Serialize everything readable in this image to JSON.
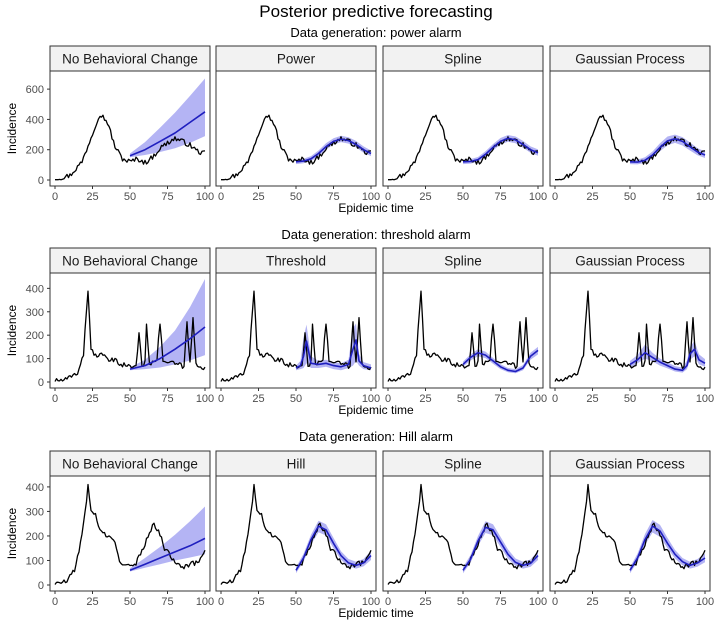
{
  "title": "Posterior predictive forecasting",
  "colors": {
    "observed": "#000000",
    "forecast_line": "#1f1fbf",
    "forecast_band": "#9b9bf0",
    "strip_fill": "#f2f2f2",
    "panel_border": "#333333"
  },
  "chart_data": [
    {
      "type": "line",
      "row_title": "Data generation: power alarm",
      "xlabel": "Epidemic time",
      "ylabel": "Incidence",
      "xlim": [
        0,
        100
      ],
      "ylim": [
        0,
        680
      ],
      "x_ticks": [
        0,
        25,
        50,
        75,
        100
      ],
      "y_ticks": [
        0,
        200,
        400,
        600
      ],
      "observed_peaks": [
        [
          0,
          5
        ],
        [
          10,
          30
        ],
        [
          18,
          120
        ],
        [
          24,
          280
        ],
        [
          29,
          420
        ],
        [
          31,
          430
        ],
        [
          35,
          380
        ],
        [
          40,
          220
        ],
        [
          45,
          140
        ],
        [
          50,
          120
        ],
        [
          55,
          140
        ],
        [
          60,
          115
        ],
        [
          65,
          150
        ],
        [
          70,
          210
        ],
        [
          75,
          245
        ],
        [
          80,
          275
        ],
        [
          85,
          255
        ],
        [
          90,
          230
        ],
        [
          95,
          190
        ],
        [
          100,
          175
        ]
      ],
      "panels": [
        {
          "label": "No Behavioral Change",
          "forecast_x": [
            50,
            60,
            70,
            80,
            90,
            100
          ],
          "forecast_mean": [
            160,
            200,
            255,
            310,
            380,
            450
          ],
          "forecast_lower": [
            150,
            165,
            185,
            210,
            245,
            290
          ],
          "forecast_upper": [
            175,
            250,
            345,
            445,
            555,
            670
          ]
        },
        {
          "label": "Power",
          "forecast_x": [
            50,
            55,
            60,
            65,
            70,
            75,
            80,
            85,
            90,
            95,
            100
          ],
          "forecast_mean": [
            120,
            125,
            140,
            175,
            220,
            255,
            270,
            260,
            235,
            200,
            175
          ],
          "forecast_lower": [
            105,
            110,
            125,
            155,
            200,
            235,
            250,
            240,
            215,
            180,
            158
          ],
          "forecast_upper": [
            135,
            140,
            158,
            195,
            242,
            275,
            292,
            282,
            258,
            222,
            195
          ]
        },
        {
          "label": "Spline",
          "forecast_x": [
            50,
            55,
            60,
            65,
            70,
            75,
            80,
            85,
            90,
            95,
            100
          ],
          "forecast_mean": [
            120,
            122,
            135,
            170,
            215,
            255,
            275,
            265,
            235,
            200,
            180
          ],
          "forecast_lower": [
            105,
            108,
            120,
            150,
            195,
            235,
            253,
            243,
            213,
            180,
            160
          ],
          "forecast_upper": [
            135,
            138,
            152,
            190,
            237,
            277,
            297,
            287,
            258,
            222,
            202
          ]
        },
        {
          "label": "Gaussian Process",
          "forecast_x": [
            50,
            55,
            60,
            65,
            70,
            75,
            80,
            85,
            90,
            95,
            100
          ],
          "forecast_mean": [
            120,
            118,
            130,
            165,
            215,
            258,
            272,
            255,
            220,
            185,
            165
          ],
          "forecast_lower": [
            105,
            103,
            113,
            145,
            190,
            230,
            245,
            228,
            195,
            163,
            145
          ],
          "forecast_upper": [
            135,
            135,
            150,
            188,
            242,
            287,
            300,
            283,
            248,
            210,
            190
          ]
        }
      ]
    },
    {
      "type": "line",
      "row_title": "Data generation: threshold alarm",
      "xlabel": "Epidemic time",
      "ylabel": "Incidence",
      "xlim": [
        0,
        100
      ],
      "ylim": [
        0,
        440
      ],
      "x_ticks": [
        0,
        25,
        50,
        75,
        100
      ],
      "y_ticks": [
        0,
        100,
        200,
        300,
        400
      ],
      "observed_peaks": [
        [
          0,
          5
        ],
        [
          8,
          10
        ],
        [
          15,
          40
        ],
        [
          19,
          120
        ],
        [
          22,
          395
        ],
        [
          24,
          150
        ],
        [
          26,
          110
        ],
        [
          30,
          120
        ],
        [
          35,
          95
        ],
        [
          40,
          90
        ],
        [
          45,
          75
        ],
        [
          50,
          65
        ],
        [
          54,
          70
        ],
        [
          56,
          200
        ],
        [
          58,
          75
        ],
        [
          60,
          80
        ],
        [
          61,
          250
        ],
        [
          63,
          80
        ],
        [
          68,
          100
        ],
        [
          70,
          255
        ],
        [
          72,
          90
        ],
        [
          78,
          80
        ],
        [
          82,
          75
        ],
        [
          86,
          65
        ],
        [
          88,
          250
        ],
        [
          90,
          80
        ],
        [
          92,
          270
        ],
        [
          94,
          75
        ],
        [
          97,
          70
        ],
        [
          100,
          60
        ]
      ],
      "panels": [
        {
          "label": "No Behavioral Change",
          "forecast_x": [
            50,
            60,
            70,
            80,
            90,
            100
          ],
          "forecast_mean": [
            55,
            70,
            100,
            140,
            185,
            235
          ],
          "forecast_lower": [
            50,
            55,
            62,
            75,
            92,
            115
          ],
          "forecast_upper": [
            62,
            95,
            150,
            220,
            320,
            440
          ]
        },
        {
          "label": "Threshold",
          "forecast_x": [
            50,
            53,
            55,
            57,
            60,
            65,
            70,
            75,
            80,
            85,
            88,
            90,
            92,
            95,
            100
          ],
          "forecast_mean": [
            60,
            70,
            110,
            175,
            80,
            75,
            80,
            70,
            65,
            75,
            140,
            180,
            90,
            70,
            60
          ],
          "forecast_lower": [
            50,
            55,
            60,
            80,
            60,
            60,
            65,
            55,
            50,
            60,
            70,
            90,
            70,
            55,
            50
          ],
          "forecast_upper": [
            70,
            90,
            190,
            245,
            110,
            90,
            95,
            85,
            80,
            95,
            230,
            250,
            120,
            85,
            75
          ]
        },
        {
          "label": "Spline",
          "forecast_x": [
            50,
            55,
            60,
            65,
            70,
            75,
            80,
            85,
            90,
            95,
            100
          ],
          "forecast_mean": [
            75,
            105,
            125,
            115,
            90,
            65,
            50,
            45,
            60,
            110,
            135
          ],
          "forecast_lower": [
            65,
            92,
            110,
            102,
            78,
            55,
            42,
            37,
            50,
            95,
            118
          ],
          "forecast_upper": [
            87,
            118,
            140,
            130,
            103,
            76,
            60,
            55,
            72,
            125,
            150
          ]
        },
        {
          "label": "Gaussian Process",
          "forecast_x": [
            50,
            55,
            60,
            65,
            70,
            75,
            80,
            85,
            88,
            90,
            93,
            96,
            100
          ],
          "forecast_mean": [
            75,
            95,
            125,
            105,
            85,
            70,
            55,
            50,
            70,
            120,
            140,
            95,
            80
          ],
          "forecast_lower": [
            62,
            80,
            100,
            88,
            70,
            58,
            45,
            40,
            55,
            95,
            110,
            75,
            65
          ],
          "forecast_upper": [
            90,
            115,
            160,
            125,
            100,
            85,
            68,
            62,
            92,
            150,
            175,
            118,
            98
          ]
        }
      ]
    },
    {
      "type": "line",
      "row_title": "Data generation: Hill alarm",
      "xlabel": "Epidemic time",
      "ylabel": "Incidence",
      "xlim": [
        0,
        100
      ],
      "ylim": [
        0,
        420
      ],
      "x_ticks": [
        0,
        25,
        50,
        75,
        100
      ],
      "y_ticks": [
        0,
        100,
        200,
        300,
        400
      ],
      "observed_peaks": [
        [
          0,
          5
        ],
        [
          8,
          15
        ],
        [
          13,
          60
        ],
        [
          18,
          200
        ],
        [
          22,
          400
        ],
        [
          24,
          300
        ],
        [
          27,
          290
        ],
        [
          30,
          220
        ],
        [
          35,
          200
        ],
        [
          40,
          170
        ],
        [
          43,
          100
        ],
        [
          48,
          80
        ],
        [
          52,
          70
        ],
        [
          55,
          100
        ],
        [
          60,
          170
        ],
        [
          63,
          220
        ],
        [
          66,
          245
        ],
        [
          70,
          210
        ],
        [
          73,
          150
        ],
        [
          78,
          110
        ],
        [
          82,
          90
        ],
        [
          86,
          75
        ],
        [
          90,
          85
        ],
        [
          95,
          90
        ],
        [
          100,
          145
        ]
      ],
      "panels": [
        {
          "label": "No Behavioral Change",
          "forecast_x": [
            50,
            60,
            70,
            80,
            90,
            100
          ],
          "forecast_mean": [
            60,
            85,
            110,
            135,
            160,
            190
          ],
          "forecast_lower": [
            55,
            70,
            85,
            100,
            112,
            125
          ],
          "forecast_upper": [
            68,
            110,
            155,
            205,
            260,
            320
          ]
        },
        {
          "label": "Hill",
          "forecast_x": [
            50,
            55,
            60,
            65,
            70,
            75,
            80,
            85,
            90,
            95,
            100
          ],
          "forecast_mean": [
            60,
            110,
            185,
            240,
            225,
            170,
            120,
            90,
            80,
            90,
            120
          ],
          "forecast_lower": [
            48,
            95,
            165,
            215,
            202,
            150,
            103,
            76,
            67,
            76,
            102
          ],
          "forecast_upper": [
            72,
            127,
            205,
            262,
            248,
            192,
            138,
            106,
            95,
            106,
            140
          ]
        },
        {
          "label": "Spline",
          "forecast_x": [
            50,
            55,
            60,
            65,
            70,
            75,
            80,
            85,
            90,
            95,
            100
          ],
          "forecast_mean": [
            60,
            105,
            180,
            235,
            225,
            175,
            125,
            92,
            80,
            88,
            120
          ],
          "forecast_lower": [
            48,
            90,
            160,
            212,
            203,
            155,
            107,
            78,
            67,
            74,
            102
          ],
          "forecast_upper": [
            72,
            122,
            200,
            260,
            248,
            197,
            145,
            108,
            95,
            104,
            140
          ]
        },
        {
          "label": "Gaussian Process",
          "forecast_x": [
            50,
            55,
            60,
            65,
            70,
            75,
            80,
            85,
            90,
            95,
            100
          ],
          "forecast_mean": [
            60,
            110,
            185,
            240,
            220,
            170,
            125,
            95,
            80,
            90,
            110
          ],
          "forecast_lower": [
            48,
            94,
            163,
            214,
            196,
            150,
            108,
            80,
            67,
            75,
            93
          ],
          "forecast_upper": [
            72,
            128,
            208,
            265,
            245,
            192,
            143,
            110,
            95,
            106,
            128
          ]
        }
      ]
    }
  ]
}
